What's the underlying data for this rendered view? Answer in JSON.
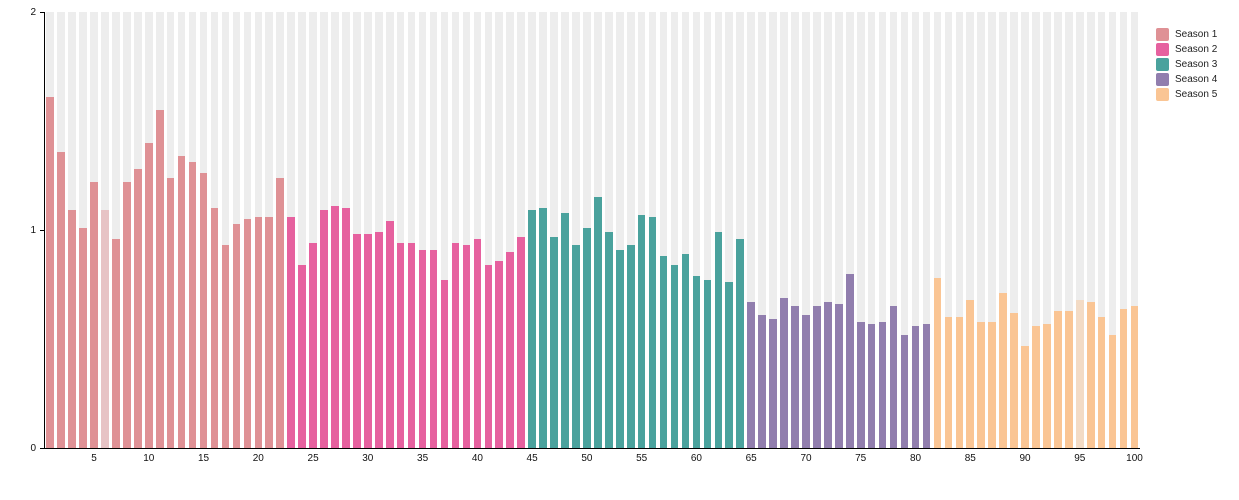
{
  "chart_data": {
    "type": "bar",
    "title": "",
    "xlabel": "",
    "ylabel": "",
    "ylim": [
      0,
      2
    ],
    "y_ticks": [
      "0",
      "1",
      "2"
    ],
    "x_ticks": [
      "5",
      "10",
      "15",
      "20",
      "25",
      "30",
      "35",
      "40",
      "45",
      "50",
      "55",
      "60",
      "65",
      "70",
      "75",
      "80",
      "85",
      "90",
      "95",
      "100"
    ],
    "x_tick_step": 5,
    "grid": "vertical-stripes",
    "stripe_color": "#ededed",
    "legend_position": "top-right",
    "faded_episodes": [
      6,
      95
    ],
    "series": [
      {
        "name": "Season 1",
        "color": "#df9195",
        "start_episode": 1,
        "values": [
          1.61,
          1.36,
          1.09,
          1.01,
          1.22,
          1.09,
          0.96,
          1.22,
          1.28,
          1.4,
          1.55,
          1.24,
          1.34,
          1.31,
          1.26,
          1.1,
          0.93,
          1.03,
          1.05,
          1.06,
          1.06,
          1.24
        ]
      },
      {
        "name": "Season 2",
        "color": "#e6619f",
        "start_episode": 23,
        "values": [
          1.06,
          0.84,
          0.94,
          1.09,
          1.11,
          1.1,
          0.98,
          0.98,
          0.99,
          1.04,
          0.94,
          0.94,
          0.91,
          0.91,
          0.77,
          0.94,
          0.93,
          0.96,
          0.84,
          0.86,
          0.9,
          0.97
        ]
      },
      {
        "name": "Season 3",
        "color": "#4aa29d",
        "start_episode": 45,
        "values": [
          1.09,
          1.1,
          0.97,
          1.08,
          0.93,
          1.01,
          1.15,
          0.99,
          0.91,
          0.93,
          1.07,
          1.06,
          0.88,
          0.84,
          0.89,
          0.79,
          0.77,
          0.99,
          0.76,
          0.96
        ]
      },
      {
        "name": "Season 4",
        "color": "#917eae",
        "start_episode": 65,
        "values": [
          0.67,
          0.61,
          0.59,
          0.69,
          0.65,
          0.61,
          0.65,
          0.67,
          0.66,
          0.8,
          0.58,
          0.57,
          0.58,
          0.65,
          0.52,
          0.56,
          0.57
        ]
      },
      {
        "name": "Season 5",
        "color": "#fac594",
        "start_episode": 82,
        "values": [
          0.78,
          0.6,
          0.6,
          0.68,
          0.58,
          0.58,
          0.71,
          0.62,
          0.47,
          0.56,
          0.57,
          0.63,
          0.63,
          0.68,
          0.67,
          0.6,
          0.52,
          0.64,
          0.65
        ]
      }
    ]
  },
  "legend": {
    "items": [
      {
        "label": "Season 1",
        "color": "#df9195"
      },
      {
        "label": "Season 2",
        "color": "#e6619f"
      },
      {
        "label": "Season 3",
        "color": "#4aa29d"
      },
      {
        "label": "Season 4",
        "color": "#917eae"
      },
      {
        "label": "Season 5",
        "color": "#fac594"
      }
    ]
  }
}
